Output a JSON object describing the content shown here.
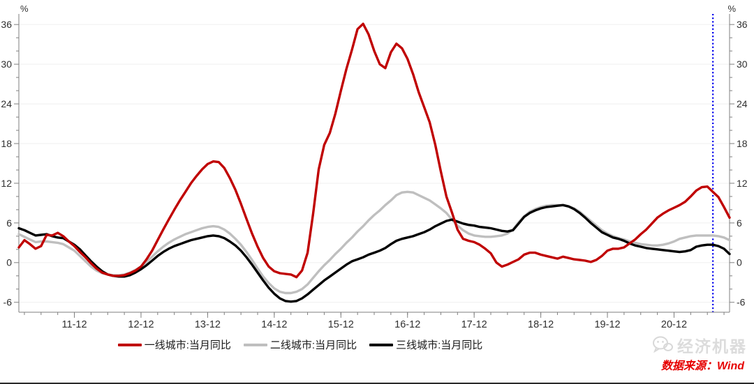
{
  "axes": {
    "unit_left": "%",
    "unit_right": "%"
  },
  "legend": [
    {
      "label": "一线城市:当月同比",
      "color": "#C00000"
    },
    {
      "label": "二线城市:当月同比",
      "color": "#BFBFBF"
    },
    {
      "label": "三线城市:当月同比",
      "color": "#000000"
    }
  ],
  "watermark": "经济机器",
  "source_note": "数据来源：Wind",
  "chart_data": {
    "type": "line",
    "x_start": "2011-02",
    "x_end": "2021-10",
    "frequency": "monthly",
    "ylabel": "%",
    "ylim": [
      -7.5,
      37.6
    ],
    "y_tick_min": -6,
    "y_tick_max": 36,
    "y_major_step": 6,
    "y_minor_step": 2,
    "grid": "horizontal-major",
    "legend_position": "bottom-center",
    "x_ticks": [
      {
        "label": "11-12",
        "index": 10
      },
      {
        "label": "12-12",
        "index": 22
      },
      {
        "label": "13-12",
        "index": 34
      },
      {
        "label": "14-12",
        "index": 46
      },
      {
        "label": "15-12",
        "index": 58
      },
      {
        "label": "16-12",
        "index": 70
      },
      {
        "label": "17-12",
        "index": 82
      },
      {
        "label": "18-12",
        "index": 94
      },
      {
        "label": "19-12",
        "index": 106
      },
      {
        "label": "20-12",
        "index": 118
      }
    ],
    "x_minor_start_index": 1,
    "x_minor_step": 3,
    "marker_line": {
      "month": "2021-07",
      "color": "#0000EE",
      "style": "dotted"
    },
    "series": [
      {
        "name": "一线城市:当月同比",
        "color": "#C00000",
        "values": [
          2.3,
          3.4,
          2.8,
          2.1,
          2.5,
          4.2,
          4.1,
          4.5,
          4.0,
          3.2,
          2.5,
          1.6,
          0.8,
          -0.1,
          -0.9,
          -1.5,
          -1.8,
          -2.0,
          -2.0,
          -1.9,
          -1.6,
          -1.2,
          -0.6,
          0.5,
          1.8,
          3.4,
          5.0,
          6.5,
          8.0,
          9.4,
          10.7,
          12.0,
          13.1,
          14.1,
          14.9,
          15.3,
          15.2,
          14.3,
          12.8,
          11.0,
          8.9,
          6.6,
          4.4,
          2.4,
          0.7,
          -0.6,
          -1.3,
          -1.6,
          -1.7,
          -1.8,
          -2.2,
          -1.2,
          1.5,
          7.4,
          14.1,
          17.8,
          19.6,
          22.5,
          26.0,
          29.3,
          32.2,
          35.3,
          36.1,
          34.5,
          32.0,
          30.0,
          29.4,
          31.8,
          33.1,
          32.4,
          30.8,
          28.5,
          25.8,
          23.5,
          21.2,
          17.8,
          13.8,
          10.0,
          7.6,
          5.0,
          3.6,
          3.3,
          3.1,
          2.7,
          2.1,
          1.4,
          0.0,
          -0.6,
          -0.3,
          0.1,
          0.5,
          1.2,
          1.5,
          1.5,
          1.2,
          1.0,
          0.8,
          0.6,
          0.9,
          0.7,
          0.5,
          0.4,
          0.3,
          0.1,
          0.4,
          1.0,
          1.8,
          2.1,
          2.1,
          2.3,
          2.9,
          3.5,
          4.3,
          5.0,
          5.9,
          6.8,
          7.4,
          7.9,
          8.3,
          8.7,
          9.2,
          10.0,
          10.9,
          11.4,
          11.5,
          10.7,
          9.9,
          8.4,
          6.8
        ]
      },
      {
        "name": "二线城市:当月同比",
        "color": "#BFBFBF",
        "values": [
          4.3,
          3.9,
          3.5,
          3.1,
          3.2,
          3.2,
          3.1,
          3.0,
          2.8,
          2.3,
          1.8,
          1.0,
          0.2,
          -0.6,
          -1.2,
          -1.6,
          -1.8,
          -1.9,
          -1.9,
          -1.8,
          -1.5,
          -1.1,
          -0.6,
          0.1,
          0.9,
          1.7,
          2.4,
          3.0,
          3.5,
          3.9,
          4.3,
          4.6,
          4.9,
          5.2,
          5.4,
          5.5,
          5.4,
          5.0,
          4.4,
          3.6,
          2.7,
          1.6,
          0.4,
          -0.9,
          -2.1,
          -3.1,
          -3.9,
          -4.4,
          -4.6,
          -4.6,
          -4.4,
          -4.0,
          -3.3,
          -2.3,
          -1.3,
          -0.4,
          0.4,
          1.3,
          2.1,
          3.0,
          3.8,
          4.7,
          5.5,
          6.4,
          7.2,
          7.9,
          8.7,
          9.4,
          10.2,
          10.6,
          10.7,
          10.6,
          10.2,
          9.8,
          9.4,
          8.8,
          8.2,
          7.5,
          6.5,
          5.6,
          4.9,
          4.4,
          4.1,
          4.0,
          3.9,
          3.9,
          4.0,
          4.1,
          4.4,
          5.0,
          6.1,
          7.0,
          7.7,
          8.1,
          8.4,
          8.6,
          8.7,
          8.7,
          8.7,
          8.5,
          8.2,
          7.7,
          7.0,
          6.3,
          5.6,
          4.9,
          4.4,
          4.0,
          3.7,
          3.5,
          3.2,
          3.0,
          2.8,
          2.7,
          2.6,
          2.6,
          2.7,
          2.9,
          3.2,
          3.6,
          3.8,
          4.0,
          4.1,
          4.1,
          4.1,
          4.1,
          4.0,
          3.8,
          3.4
        ]
      },
      {
        "name": "三线城市:当月同比",
        "color": "#000000",
        "values": [
          5.2,
          4.9,
          4.5,
          4.1,
          4.2,
          4.3,
          4.0,
          3.8,
          3.7,
          3.2,
          2.7,
          2.0,
          1.1,
          0.2,
          -0.6,
          -1.3,
          -1.8,
          -2.0,
          -2.1,
          -2.1,
          -1.9,
          -1.5,
          -1.0,
          -0.4,
          0.3,
          1.0,
          1.6,
          2.1,
          2.5,
          2.8,
          3.1,
          3.4,
          3.6,
          3.8,
          4.0,
          4.1,
          4.0,
          3.7,
          3.2,
          2.6,
          1.8,
          0.8,
          -0.3,
          -1.5,
          -2.7,
          -3.8,
          -4.7,
          -5.4,
          -5.8,
          -5.9,
          -5.8,
          -5.4,
          -4.8,
          -4.1,
          -3.4,
          -2.7,
          -2.1,
          -1.5,
          -0.9,
          -0.3,
          0.2,
          0.5,
          0.8,
          1.2,
          1.5,
          1.8,
          2.2,
          2.8,
          3.3,
          3.6,
          3.8,
          4.0,
          4.3,
          4.6,
          5.0,
          5.5,
          5.9,
          6.3,
          6.5,
          6.2,
          5.9,
          5.7,
          5.6,
          5.4,
          5.3,
          5.2,
          5.0,
          4.8,
          4.7,
          4.9,
          5.9,
          6.9,
          7.5,
          7.9,
          8.2,
          8.4,
          8.5,
          8.6,
          8.7,
          8.5,
          8.1,
          7.5,
          6.8,
          6.0,
          5.3,
          4.6,
          4.2,
          3.8,
          3.6,
          3.3,
          2.9,
          2.6,
          2.4,
          2.2,
          2.1,
          2.0,
          1.9,
          1.8,
          1.7,
          1.6,
          1.7,
          1.9,
          2.4,
          2.6,
          2.7,
          2.7,
          2.5,
          2.1,
          1.3
        ]
      }
    ]
  }
}
